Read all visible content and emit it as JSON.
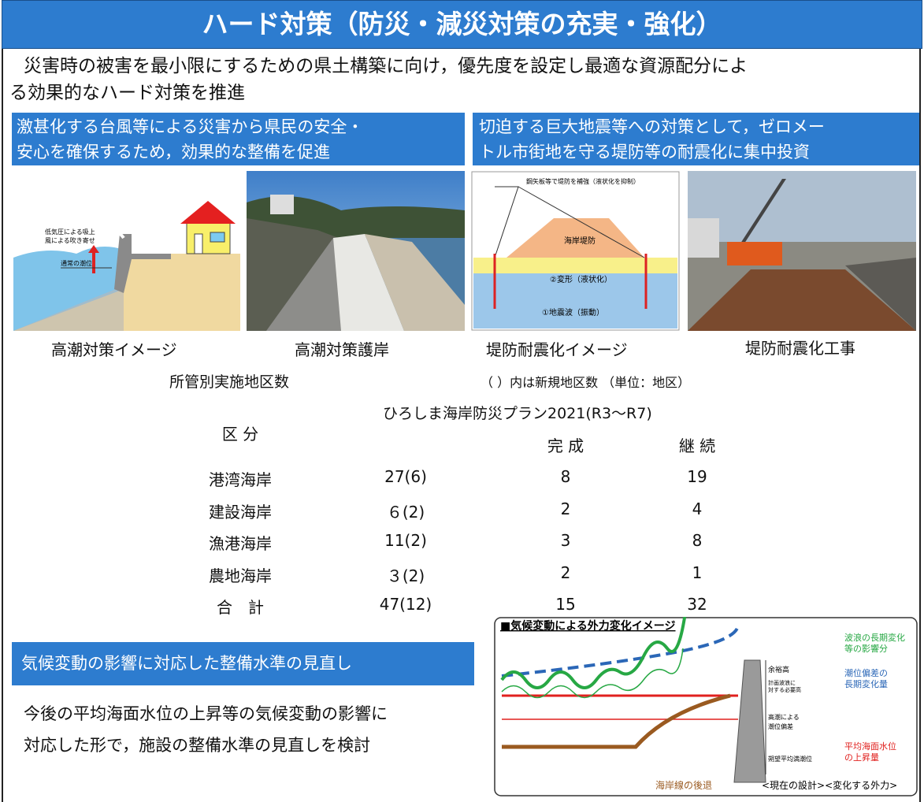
{
  "header": {
    "title": "ハード対策（防災・減災対策の充実・強化）"
  },
  "intro": [
    "災害時の被害を最小限にするための県土構築に向け，優先度を設定し最適な資源配分によ",
    "る効果的なハード対策を推進"
  ],
  "panels": [
    {
      "heading": [
        "激甚化する台風等による災害から県民の安全・",
        "安心を確保するため，効果的な整備を促進"
      ]
    },
    {
      "heading": [
        "切迫する巨大地震等への対策として，ゼロメー",
        "トル市街地を守る堤防等の耐震化に集中投資"
      ]
    }
  ],
  "images": [
    {
      "caption": "高潮対策イメージ",
      "labels": [
        "低気圧による吸上",
        "風による吹き寄せ",
        "通常の潮位"
      ]
    },
    {
      "caption": "高潮対策護岸"
    },
    {
      "caption": "堤防耐震化イメージ",
      "labels": [
        "鋼矢板等で堤防を補強（液状化を抑制）",
        "海岸堤防",
        "②変形（液状化）",
        "①地震波（振動）"
      ]
    },
    {
      "caption": "堤防耐震化工事"
    }
  ],
  "table": {
    "title": "所管別実施地区数",
    "note": "（ ）内は新規地区数 （単位：地区）",
    "plan": "ひろしま海岸防災プラン2021(R3〜R7)",
    "columns": [
      "区 分",
      "完 成",
      "継 続"
    ],
    "rows": [
      [
        "港湾海岸",
        "27(6)",
        8,
        19
      ],
      [
        "建設海岸",
        "６(2)",
        2,
        4
      ],
      [
        "漁港海岸",
        "11(2)",
        3,
        8
      ],
      [
        "農地海岸",
        "３(2)",
        2,
        1
      ],
      [
        "合　計",
        "47(12)",
        15,
        32
      ]
    ]
  },
  "climate": {
    "heading": "気候変動の影響に対応した整備水準の見直し",
    "text": [
      "今後の平均海面水位の上昇等の気候変動の影響に",
      "対応した形で，施設の整備水準の見直しを検討"
    ],
    "diagram": {
      "title": "■気候変動による外力変化イメージ",
      "labels": [
        "余裕高",
        "計画波浪に",
        "対する必要高",
        "高潮による",
        "潮位偏差",
        "朔望平均満潮位",
        "波浪の長期変化",
        "等の影響分",
        "潮位偏差の",
        "長期変化量",
        "平均海面水位",
        "の上昇量",
        "海岸線の後退",
        "<現在の設計><変化する外力>"
      ]
    }
  }
}
